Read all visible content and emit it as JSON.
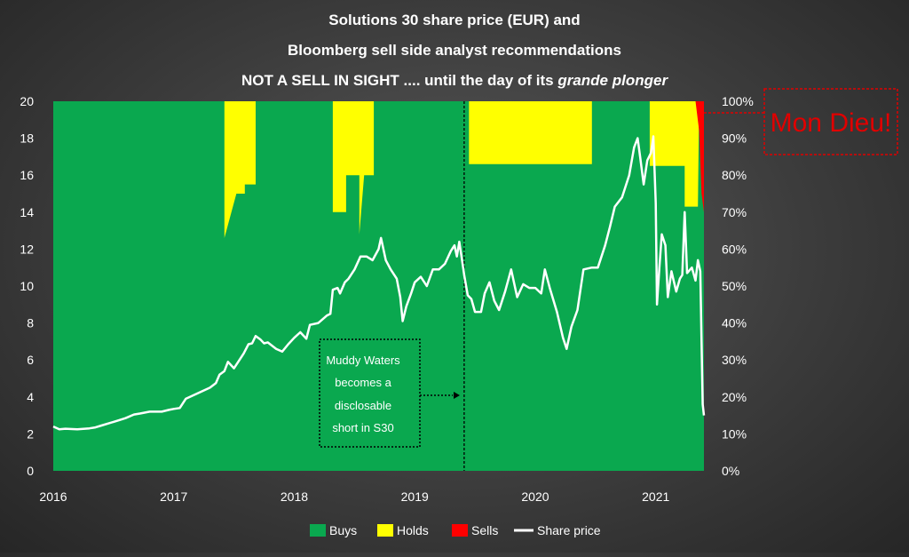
{
  "chart_data": {
    "type": "area",
    "title_lines": [
      "Solutions 30 share price (EUR) and",
      "Bloomberg sell side analyst recommendations",
      "NOT A SELL IN SIGHT .... until the day of its "
    ],
    "title_italic": "grande plonger",
    "x_ticks": [
      "2016",
      "2017",
      "2018",
      "2019",
      "2020",
      "2021"
    ],
    "x_range": [
      2016.0,
      2021.4
    ],
    "y_left": {
      "ticks": [
        "0",
        "2",
        "4",
        "6",
        "8",
        "10",
        "12",
        "14",
        "16",
        "18",
        "20"
      ],
      "range": [
        0,
        20
      ]
    },
    "y_right": {
      "ticks": [
        "0%",
        "10%",
        "20%",
        "30%",
        "40%",
        "50%",
        "60%",
        "70%",
        "80%",
        "90%",
        "100%"
      ],
      "range": [
        0,
        100
      ]
    },
    "colors": {
      "buys": "#0aa84f",
      "holds": "#ffff00",
      "sells": "#ff0000",
      "price": "#ffffff"
    },
    "legend": [
      {
        "label": "Buys",
        "color": "#0aa84f",
        "kind": "box"
      },
      {
        "label": "Holds",
        "color": "#ffff00",
        "kind": "box"
      },
      {
        "label": "Sells",
        "color": "#ff0000",
        "kind": "box"
      },
      {
        "label": "Share price",
        "color": "#ffffff",
        "kind": "line"
      }
    ],
    "holds_pct": [
      [
        2016.0,
        0
      ],
      [
        2017.42,
        0
      ],
      [
        2017.42,
        37
      ],
      [
        2017.52,
        25
      ],
      [
        2017.59,
        25
      ],
      [
        2017.59,
        22.5
      ],
      [
        2017.68,
        22.5
      ],
      [
        2017.68,
        0
      ],
      [
        2018.32,
        0
      ],
      [
        2018.32,
        30
      ],
      [
        2018.43,
        30
      ],
      [
        2018.43,
        20
      ],
      [
        2018.54,
        20
      ],
      [
        2018.54,
        36
      ],
      [
        2018.58,
        20
      ],
      [
        2018.66,
        20
      ],
      [
        2018.66,
        0
      ],
      [
        2019.45,
        0
      ],
      [
        2019.45,
        17
      ],
      [
        2020.47,
        17
      ],
      [
        2020.47,
        0
      ],
      [
        2020.95,
        0
      ],
      [
        2020.95,
        17.5
      ],
      [
        2021.24,
        17.5
      ],
      [
        2021.24,
        28.5
      ],
      [
        2021.35,
        28.5
      ],
      [
        2021.36,
        0
      ],
      [
        2021.4,
        0
      ]
    ],
    "sells_pct": [
      [
        2021.0,
        0
      ],
      [
        2021.33,
        0
      ],
      [
        2021.36,
        8
      ],
      [
        2021.38,
        25
      ],
      [
        2021.4,
        30
      ]
    ],
    "share_price": [
      [
        2016.0,
        2.4
      ],
      [
        2016.05,
        2.25
      ],
      [
        2016.1,
        2.28
      ],
      [
        2016.2,
        2.25
      ],
      [
        2016.3,
        2.3
      ],
      [
        2016.35,
        2.35
      ],
      [
        2016.4,
        2.45
      ],
      [
        2016.5,
        2.65
      ],
      [
        2016.55,
        2.75
      ],
      [
        2016.6,
        2.85
      ],
      [
        2016.67,
        3.05
      ],
      [
        2016.72,
        3.1
      ],
      [
        2016.8,
        3.2
      ],
      [
        2016.9,
        3.2
      ],
      [
        2016.96,
        3.3
      ],
      [
        2017.0,
        3.35
      ],
      [
        2017.05,
        3.4
      ],
      [
        2017.1,
        3.9
      ],
      [
        2017.15,
        4.05
      ],
      [
        2017.2,
        4.2
      ],
      [
        2017.3,
        4.5
      ],
      [
        2017.35,
        4.75
      ],
      [
        2017.38,
        5.2
      ],
      [
        2017.42,
        5.4
      ],
      [
        2017.45,
        5.9
      ],
      [
        2017.5,
        5.55
      ],
      [
        2017.55,
        6.05
      ],
      [
        2017.58,
        6.35
      ],
      [
        2017.62,
        6.85
      ],
      [
        2017.65,
        6.9
      ],
      [
        2017.68,
        7.3
      ],
      [
        2017.72,
        7.1
      ],
      [
        2017.75,
        6.9
      ],
      [
        2017.78,
        6.95
      ],
      [
        2017.85,
        6.6
      ],
      [
        2017.9,
        6.45
      ],
      [
        2017.95,
        6.85
      ],
      [
        2018.0,
        7.2
      ],
      [
        2018.05,
        7.5
      ],
      [
        2018.1,
        7.15
      ],
      [
        2018.13,
        7.9
      ],
      [
        2018.2,
        8.0
      ],
      [
        2018.27,
        8.4
      ],
      [
        2018.3,
        8.5
      ],
      [
        2018.32,
        9.8
      ],
      [
        2018.36,
        9.9
      ],
      [
        2018.38,
        9.6
      ],
      [
        2018.42,
        10.2
      ],
      [
        2018.45,
        10.4
      ],
      [
        2018.5,
        10.9
      ],
      [
        2018.55,
        11.6
      ],
      [
        2018.6,
        11.6
      ],
      [
        2018.65,
        11.4
      ],
      [
        2018.7,
        12.0
      ],
      [
        2018.72,
        12.6
      ],
      [
        2018.76,
        11.4
      ],
      [
        2018.8,
        10.9
      ],
      [
        2018.85,
        10.4
      ],
      [
        2018.88,
        9.4
      ],
      [
        2018.9,
        8.1
      ],
      [
        2018.93,
        8.9
      ],
      [
        2018.97,
        9.6
      ],
      [
        2019.0,
        10.2
      ],
      [
        2019.05,
        10.5
      ],
      [
        2019.1,
        10.0
      ],
      [
        2019.15,
        10.9
      ],
      [
        2019.2,
        10.9
      ],
      [
        2019.25,
        11.2
      ],
      [
        2019.3,
        11.9
      ],
      [
        2019.33,
        12.2
      ],
      [
        2019.35,
        11.6
      ],
      [
        2019.37,
        12.4
      ],
      [
        2019.39,
        11.5
      ],
      [
        2019.41,
        10.6
      ],
      [
        2019.44,
        9.5
      ],
      [
        2019.47,
        9.3
      ],
      [
        2019.5,
        8.6
      ],
      [
        2019.55,
        8.6
      ],
      [
        2019.58,
        9.6
      ],
      [
        2019.62,
        10.2
      ],
      [
        2019.66,
        9.2
      ],
      [
        2019.7,
        8.7
      ],
      [
        2019.75,
        9.7
      ],
      [
        2019.8,
        10.9
      ],
      [
        2019.85,
        9.4
      ],
      [
        2019.9,
        10.1
      ],
      [
        2019.95,
        9.9
      ],
      [
        2020.0,
        9.9
      ],
      [
        2020.05,
        9.6
      ],
      [
        2020.08,
        10.9
      ],
      [
        2020.12,
        9.9
      ],
      [
        2020.18,
        8.6
      ],
      [
        2020.23,
        7.2
      ],
      [
        2020.26,
        6.6
      ],
      [
        2020.3,
        7.8
      ],
      [
        2020.35,
        8.7
      ],
      [
        2020.4,
        10.9
      ],
      [
        2020.47,
        11.0
      ],
      [
        2020.52,
        11.0
      ],
      [
        2020.58,
        12.2
      ],
      [
        2020.62,
        13.2
      ],
      [
        2020.66,
        14.3
      ],
      [
        2020.72,
        14.8
      ],
      [
        2020.78,
        16.0
      ],
      [
        2020.82,
        17.5
      ],
      [
        2020.85,
        18.0
      ],
      [
        2020.87,
        17.0
      ],
      [
        2020.9,
        15.5
      ],
      [
        2020.93,
        16.8
      ],
      [
        2020.96,
        17.2
      ],
      [
        2020.98,
        18.1
      ],
      [
        2021.0,
        14.5
      ],
      [
        2021.01,
        9.0
      ],
      [
        2021.03,
        11.0
      ],
      [
        2021.05,
        12.8
      ],
      [
        2021.08,
        12.2
      ],
      [
        2021.1,
        9.4
      ],
      [
        2021.13,
        10.8
      ],
      [
        2021.17,
        9.7
      ],
      [
        2021.2,
        10.4
      ],
      [
        2021.22,
        10.6
      ],
      [
        2021.24,
        14.0
      ],
      [
        2021.26,
        10.7
      ],
      [
        2021.3,
        11.0
      ],
      [
        2021.33,
        10.3
      ],
      [
        2021.35,
        11.4
      ],
      [
        2021.37,
        10.8
      ],
      [
        2021.38,
        7.0
      ],
      [
        2021.39,
        3.6
      ],
      [
        2021.4,
        3.0
      ]
    ],
    "event_x": 2019.41,
    "annotation": {
      "lines": [
        "Muddy Waters",
        "becomes a",
        "disclosable",
        "short in S30"
      ]
    },
    "callout": "Mon Dieu!"
  }
}
